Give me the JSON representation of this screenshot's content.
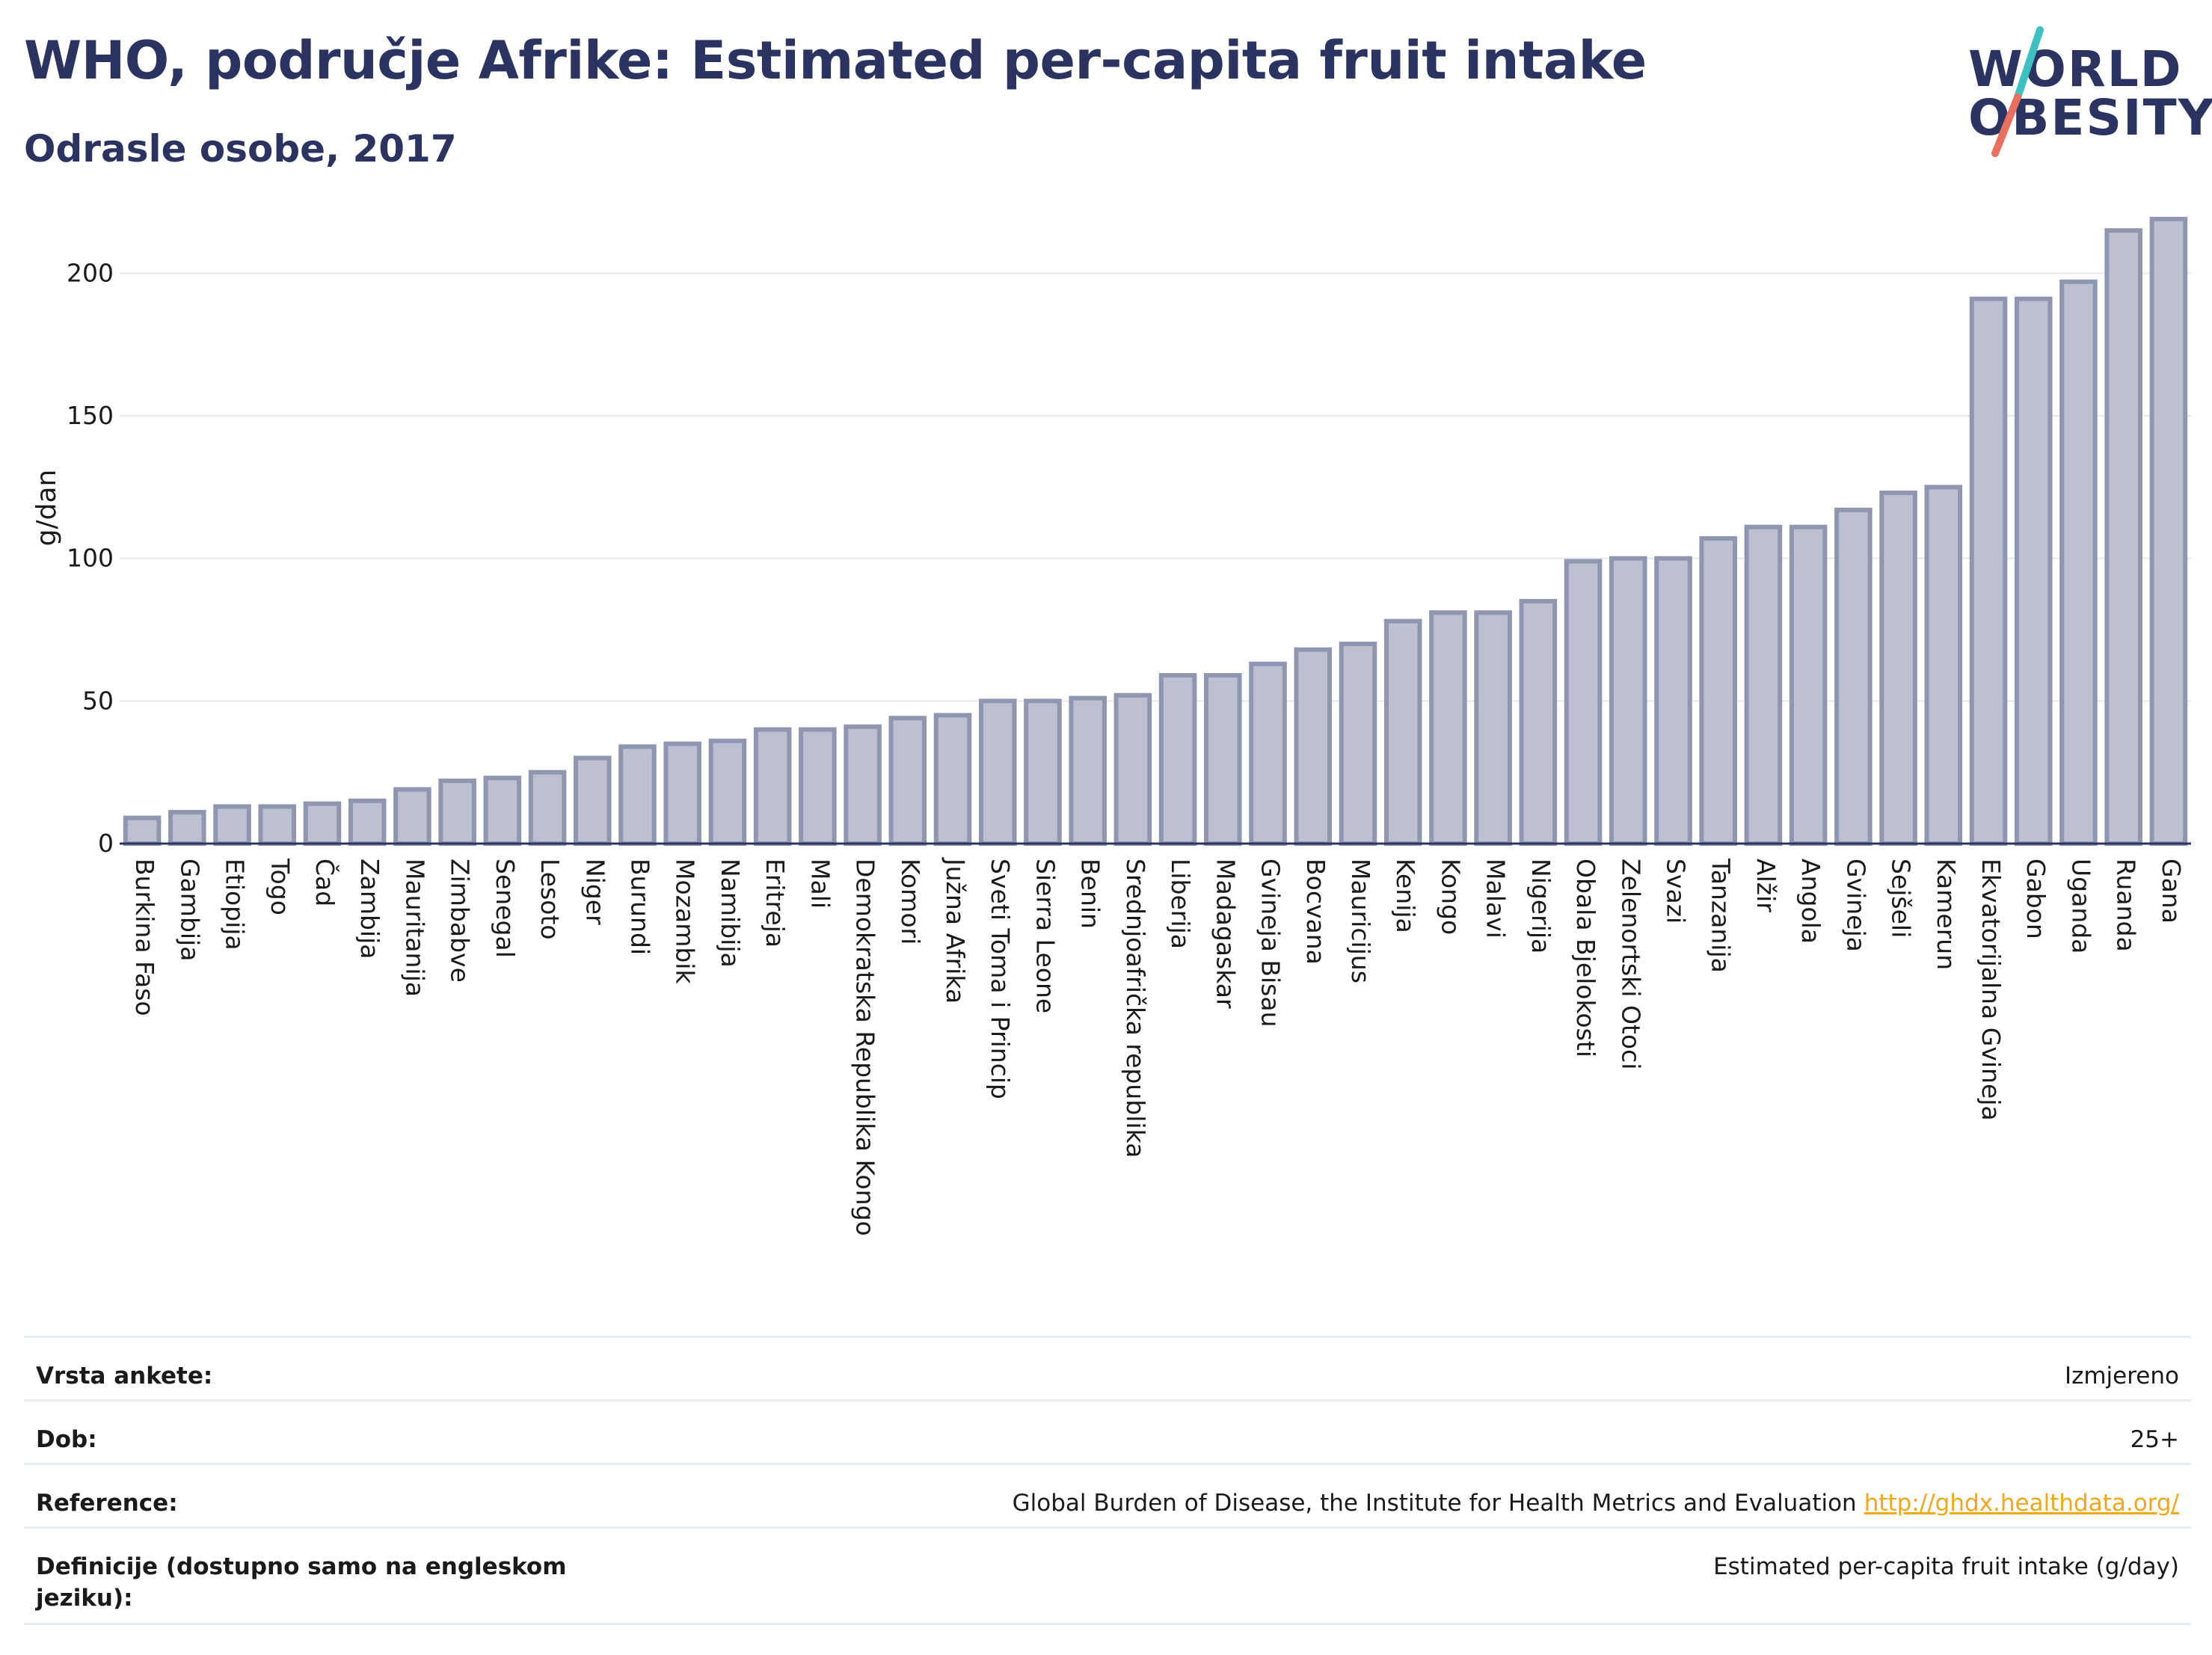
{
  "header": {
    "title": "WHO, područje Afrike: Estimated per-capita fruit intake",
    "subtitle": "Odrasle osobe, 2017"
  },
  "logo": {
    "line1": "WORLD",
    "line2": "OBESITY",
    "accent_teal": "#3fbfc0",
    "accent_coral": "#e8705f"
  },
  "chart_data": {
    "type": "bar",
    "ylabel": "g/dan",
    "ylim": [
      0,
      225
    ],
    "yticks": [
      0,
      50,
      100,
      150,
      200
    ],
    "grid": true,
    "bar_fill": "#bcc0d0",
    "bar_stroke": "#8f96b0",
    "categories": [
      "Burkina Faso",
      "Gambija",
      "Etiopija",
      "Togo",
      "Čad",
      "Zambija",
      "Mauritanija",
      "Zimbabve",
      "Senegal",
      "Lesoto",
      "Niger",
      "Burundi",
      "Mozambik",
      "Namibija",
      "Eritreja",
      "Mali",
      "Demokratska Republika Kongo",
      "Komori",
      "Južna Afrika",
      "Sveti Toma i Princip",
      "Sierra Leone",
      "Benin",
      "Srednjoafrička republika",
      "Liberija",
      "Madagaskar",
      "Gvineja Bisau",
      "Bocvana",
      "Mauricijus",
      "Kenija",
      "Kongo",
      "Malavi",
      "Nigerija",
      "Obala Bjelokosti",
      "Zelenortski Otoci",
      "Svazi",
      "Tanzanija",
      "Alžir",
      "Angola",
      "Gvineja",
      "Sejšeli",
      "Kamerun",
      "Ekvatorijalna Gvineja",
      "Gabon",
      "Uganda",
      "Ruanda",
      "Gana"
    ],
    "values": [
      9,
      11,
      13,
      13,
      14,
      15,
      19,
      22,
      23,
      25,
      30,
      34,
      35,
      36,
      40,
      40,
      41,
      44,
      45,
      50,
      50,
      51,
      52,
      59,
      59,
      63,
      68,
      70,
      78,
      81,
      81,
      85,
      99,
      100,
      100,
      107,
      111,
      111,
      117,
      123,
      125,
      191,
      191,
      197,
      215,
      219
    ]
  },
  "info_table": [
    {
      "key": "Vrsta ankete:",
      "value": "Izmjereno"
    },
    {
      "key": "Dob:",
      "value": "25+"
    },
    {
      "key": "Reference:",
      "value": "Global Burden of Disease, the Institute for Health Metrics and Evaluation",
      "link": "http://ghdx.healthdata.org/"
    },
    {
      "key": "Definicije (dostupno samo na engleskom jeziku):",
      "value": "Estimated per-capita fruit intake (g/day)"
    }
  ]
}
